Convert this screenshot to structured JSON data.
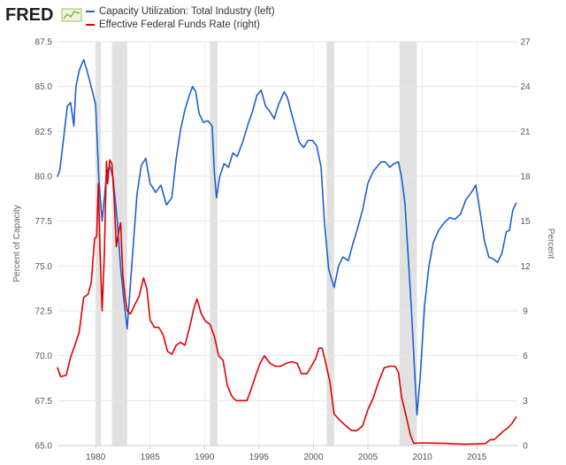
{
  "brand": {
    "logo_text": "FRED",
    "logo_icon": "line-chart-icon",
    "colors": {
      "text": "#1f1f1f",
      "accent": "#8fb33e"
    }
  },
  "chart_data": {
    "type": "line",
    "title": "",
    "source_logo": "FRED",
    "xlabel": "",
    "xlim": [
      1976.5,
      2018.8
    ],
    "x_ticks": [
      1980,
      1985,
      1990,
      1995,
      2000,
      2005,
      2010,
      2015
    ],
    "x_tick_labels": [
      "1980",
      "1985",
      "1990",
      "1995",
      "2000",
      "2005",
      "2010",
      "2015"
    ],
    "y_left": {
      "label": "Percent of Capacity",
      "lim": [
        65.0,
        87.5
      ],
      "ticks": [
        65.0,
        67.5,
        70.0,
        72.5,
        75.0,
        77.5,
        80.0,
        82.5,
        85.0,
        87.5
      ],
      "tick_labels": [
        "65.0",
        "67.5",
        "70.0",
        "72.5",
        "75.0",
        "77.5",
        "80.0",
        "82.5",
        "85.0",
        "87.5"
      ]
    },
    "y_right": {
      "label": "Percent",
      "lim": [
        0,
        27
      ],
      "ticks": [
        0,
        3,
        6,
        9,
        12,
        15,
        18,
        21,
        24,
        27
      ],
      "tick_labels": [
        "0",
        "3",
        "6",
        "9",
        "12",
        "15",
        "18",
        "21",
        "24",
        "27"
      ]
    },
    "grid": true,
    "recessions": [
      [
        1980.0,
        1980.5
      ],
      [
        1981.5,
        1982.9
      ],
      [
        1990.5,
        1991.2
      ],
      [
        2001.2,
        2001.9
      ],
      [
        2007.9,
        2009.5
      ]
    ],
    "recession_color": "#e1e1e1",
    "series": [
      {
        "name": "Capacity Utilization: Total Industry (left)",
        "axis": "left",
        "color": "#1f5fcf",
        "x": [
          1976.5,
          1976.7,
          1977.0,
          1977.4,
          1977.7,
          1978.0,
          1978.2,
          1978.5,
          1978.9,
          1979.2,
          1979.5,
          1979.8,
          1980.0,
          1980.3,
          1980.6,
          1981.0,
          1981.3,
          1981.6,
          1982.0,
          1982.3,
          1982.6,
          1982.9,
          1983.2,
          1983.5,
          1983.8,
          1984.2,
          1984.6,
          1985.0,
          1985.5,
          1986.0,
          1986.5,
          1987.0,
          1987.4,
          1987.8,
          1988.2,
          1988.6,
          1988.9,
          1989.2,
          1989.5,
          1989.9,
          1990.3,
          1990.7,
          1990.9,
          1991.1,
          1991.4,
          1991.8,
          1992.2,
          1992.6,
          1993.0,
          1993.5,
          1994.0,
          1994.4,
          1994.8,
          1995.2,
          1995.6,
          1996.0,
          1996.4,
          1996.8,
          1997.3,
          1997.6,
          1997.9,
          1998.3,
          1998.7,
          1999.1,
          1999.5,
          1999.9,
          2000.3,
          2000.7,
          2001.0,
          2001.4,
          2001.9,
          2002.3,
          2002.7,
          2003.2,
          2003.6,
          2004.0,
          2004.5,
          2005.0,
          2005.5,
          2005.8,
          2006.2,
          2006.6,
          2007.0,
          2007.4,
          2007.8,
          2008.1,
          2008.4,
          2008.7,
          2009.0,
          2009.3,
          2009.5,
          2009.8,
          2010.2,
          2010.6,
          2011.0,
          2011.5,
          2012.0,
          2012.5,
          2013.0,
          2013.5,
          2014.0,
          2014.5,
          2014.9,
          2015.3,
          2015.7,
          2016.1,
          2016.5,
          2016.9,
          2017.3,
          2017.7,
          2018.0,
          2018.3,
          2018.6
        ],
        "values": [
          80.0,
          80.3,
          81.8,
          83.9,
          84.1,
          82.8,
          85.0,
          85.9,
          86.5,
          85.9,
          85.2,
          84.5,
          84.0,
          79.8,
          77.5,
          80.1,
          80.6,
          79.9,
          77.5,
          74.9,
          73.1,
          71.5,
          74.0,
          76.5,
          79.0,
          80.6,
          81.0,
          79.6,
          79.1,
          79.5,
          78.4,
          78.8,
          81.0,
          82.6,
          83.7,
          84.5,
          85.0,
          84.7,
          83.5,
          83.0,
          83.1,
          82.8,
          80.2,
          78.8,
          80.0,
          80.7,
          80.5,
          81.3,
          81.1,
          81.9,
          82.9,
          83.6,
          84.5,
          84.8,
          83.9,
          83.6,
          83.2,
          84.0,
          84.7,
          84.4,
          83.7,
          82.8,
          81.9,
          81.6,
          82.0,
          82.0,
          81.7,
          80.5,
          77.5,
          74.8,
          73.8,
          75.0,
          75.5,
          75.3,
          76.2,
          77.0,
          78.1,
          79.6,
          80.3,
          80.5,
          80.8,
          80.8,
          80.5,
          80.7,
          80.8,
          79.9,
          78.5,
          75.5,
          72.5,
          69.0,
          66.7,
          68.8,
          72.8,
          75.0,
          76.3,
          77.0,
          77.4,
          77.7,
          77.6,
          77.9,
          78.7,
          79.1,
          79.5,
          78.0,
          76.4,
          75.5,
          75.4,
          75.2,
          75.7,
          76.9,
          77.0,
          78.1,
          78.5
        ]
      },
      {
        "name": "Effective Federal Funds Rate (right)",
        "axis": "right",
        "color": "#e10000",
        "x": [
          1976.5,
          1976.8,
          1977.3,
          1977.7,
          1978.1,
          1978.5,
          1978.9,
          1979.3,
          1979.6,
          1979.9,
          1980.1,
          1980.25,
          1980.4,
          1980.6,
          1980.8,
          1981.0,
          1981.1,
          1981.3,
          1981.5,
          1981.7,
          1981.9,
          1982.1,
          1982.3,
          1982.5,
          1982.7,
          1982.9,
          1983.2,
          1983.6,
          1984.0,
          1984.4,
          1984.7,
          1985.0,
          1985.4,
          1985.8,
          1986.2,
          1986.6,
          1987.0,
          1987.4,
          1987.8,
          1988.2,
          1988.6,
          1989.0,
          1989.3,
          1989.7,
          1990.1,
          1990.5,
          1990.9,
          1991.3,
          1991.7,
          1992.1,
          1992.5,
          1992.9,
          1993.4,
          1993.9,
          1994.3,
          1994.7,
          1995.1,
          1995.5,
          1996.0,
          1996.5,
          1997.0,
          1997.5,
          1998.0,
          1998.5,
          1998.9,
          1999.4,
          1999.8,
          2000.2,
          2000.5,
          2000.8,
          2001.1,
          2001.5,
          2001.9,
          2002.4,
          2003.0,
          2003.5,
          2004.0,
          2004.5,
          2005.0,
          2005.5,
          2006.0,
          2006.5,
          2007.0,
          2007.5,
          2007.8,
          2008.1,
          2008.5,
          2008.9,
          2009.2,
          2010.0,
          2012.0,
          2014.0,
          2015.8,
          2016.2,
          2016.6,
          2017.0,
          2017.4,
          2017.8,
          2018.2,
          2018.6
        ],
        "values": [
          5.2,
          4.6,
          4.7,
          5.9,
          6.7,
          7.6,
          9.9,
          10.1,
          10.9,
          13.8,
          14.0,
          17.5,
          13.2,
          9.0,
          12.8,
          19.0,
          17.5,
          19.1,
          18.8,
          16.6,
          13.3,
          14.2,
          14.9,
          11.4,
          10.0,
          9.0,
          8.8,
          9.4,
          10.0,
          11.2,
          10.5,
          8.4,
          7.9,
          7.9,
          7.4,
          6.3,
          6.1,
          6.7,
          6.9,
          6.7,
          7.8,
          9.1,
          9.8,
          8.8,
          8.3,
          8.1,
          7.3,
          6.0,
          5.7,
          4.0,
          3.3,
          3.0,
          3.0,
          3.0,
          3.8,
          4.7,
          5.5,
          6.0,
          5.5,
          5.3,
          5.3,
          5.5,
          5.6,
          5.5,
          4.8,
          4.8,
          5.3,
          5.8,
          6.5,
          6.5,
          5.6,
          4.3,
          2.1,
          1.7,
          1.3,
          1.0,
          1.0,
          1.3,
          2.4,
          3.2,
          4.3,
          5.2,
          5.3,
          5.3,
          4.9,
          3.2,
          2.0,
          0.7,
          0.15,
          0.18,
          0.14,
          0.09,
          0.13,
          0.38,
          0.4,
          0.66,
          0.95,
          1.15,
          1.45,
          1.9
        ]
      }
    ]
  }
}
